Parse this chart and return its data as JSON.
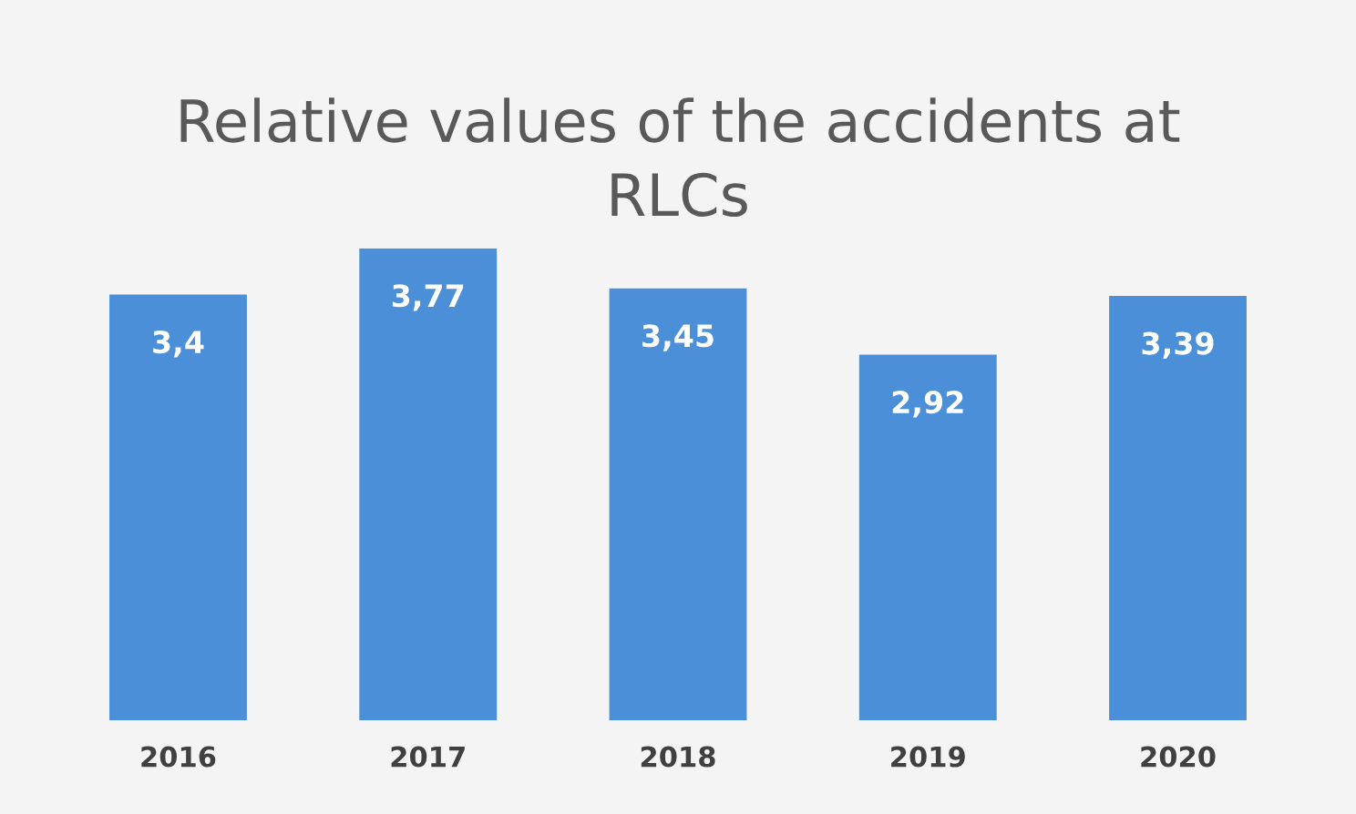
{
  "chart_data": {
    "type": "bar",
    "title": "Relative values of the accidents at\nRLCs",
    "categories": [
      "2016",
      "2017",
      "2018",
      "2019",
      "2020"
    ],
    "values": [
      3.4,
      3.77,
      3.45,
      2.92,
      3.39
    ],
    "value_labels": [
      "3,4",
      "3,77",
      "3,45",
      "2,92",
      "3,39"
    ],
    "color": "#4a8fd8",
    "grid": false,
    "legend": false
  }
}
